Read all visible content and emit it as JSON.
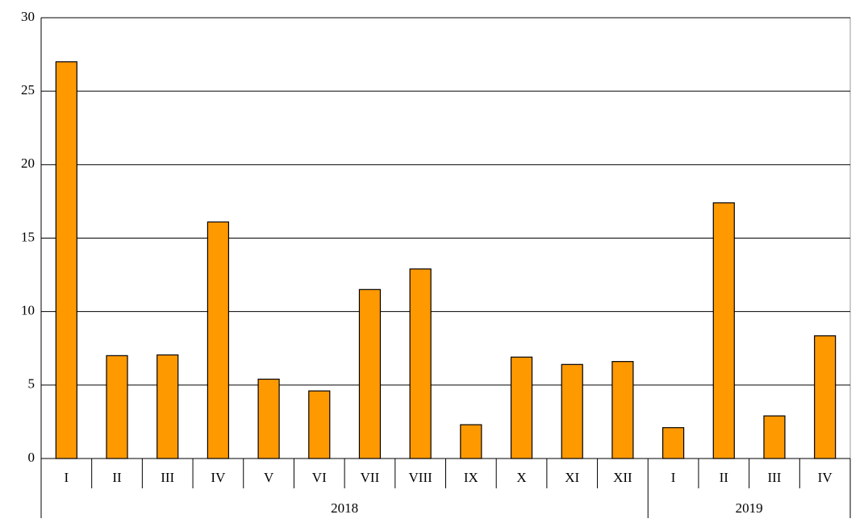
{
  "chart_data": {
    "type": "bar",
    "color": "#ff9900",
    "groups": [
      {
        "label": "2018",
        "categories": [
          "I",
          "II",
          "III",
          "IV",
          "V",
          "VI",
          "VII",
          "VIII",
          "IX",
          "X",
          "XI",
          "XII"
        ],
        "values": [
          27.0,
          7.0,
          7.05,
          16.1,
          5.4,
          4.6,
          11.5,
          12.9,
          2.3,
          6.9,
          6.4,
          6.6
        ]
      },
      {
        "label": "2019",
        "categories": [
          "I",
          "II",
          "III",
          "IV"
        ],
        "values": [
          2.1,
          17.4,
          2.9,
          8.35
        ]
      }
    ],
    "ylim": [
      0,
      30
    ],
    "yticks": [
      0,
      5,
      10,
      15,
      20,
      25,
      30
    ],
    "grid": true
  }
}
